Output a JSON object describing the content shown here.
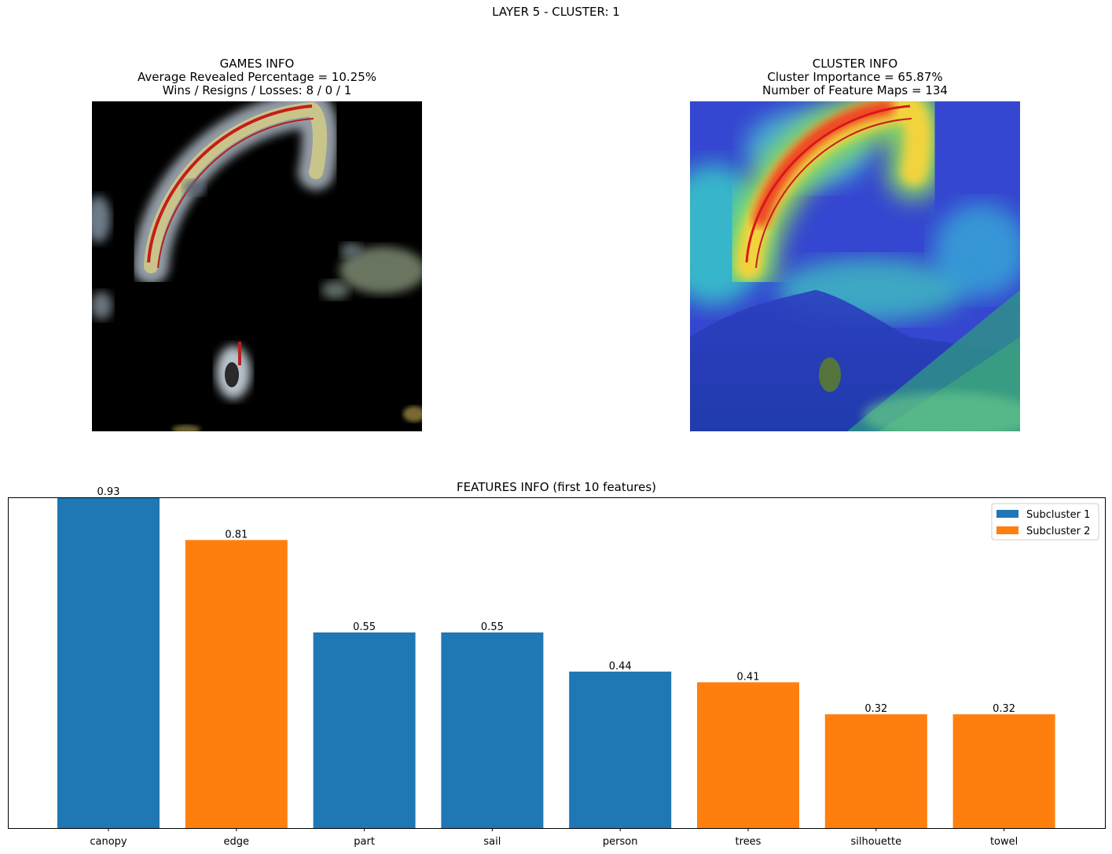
{
  "suptitle": "LAYER 5 - CLUSTER: 1",
  "games_info": {
    "title": "GAMES INFO",
    "line1": "Average Revealed Percentage = 10.25%",
    "line2": "Wins / Resigns / Losses: 8 / 0 / 1"
  },
  "cluster_info": {
    "title": "CLUSTER INFO",
    "line1": "Cluster Importance = 65.87%",
    "line2": "Number of Feature Maps = 134"
  },
  "colors": {
    "subcluster_1": "#1f77b4",
    "subcluster_2": "#ff7f0e"
  },
  "chart_data": {
    "type": "bar",
    "title": "FEATURES INFO (first 10 features)",
    "categories": [
      "canopy",
      "edge",
      "part",
      "sail",
      "person",
      "trees",
      "silhouette",
      "towel"
    ],
    "values": [
      0.93,
      0.81,
      0.55,
      0.55,
      0.44,
      0.41,
      0.32,
      0.32
    ],
    "value_labels": [
      "0.93",
      "0.81",
      "0.55",
      "0.55",
      "0.44",
      "0.41",
      "0.32",
      "0.32"
    ],
    "subcluster": [
      1,
      2,
      1,
      1,
      1,
      2,
      2,
      2
    ],
    "legend": [
      {
        "name": "Subcluster 1",
        "color": "#1f77b4"
      },
      {
        "name": "Subcluster 2",
        "color": "#ff7f0e"
      }
    ],
    "legend_position": "top-right",
    "ylim": [
      0,
      0.93
    ],
    "y_axis_visible": false,
    "grid": false
  }
}
